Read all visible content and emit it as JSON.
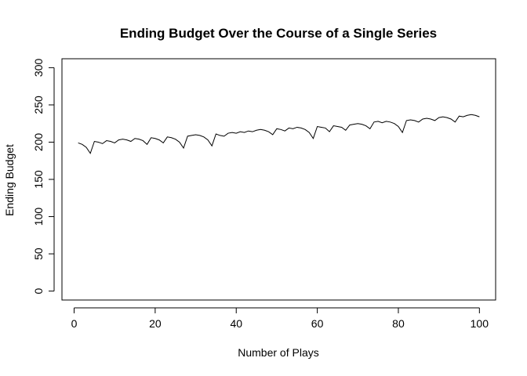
{
  "chart_data": {
    "type": "line",
    "title": "Ending Budget Over the Course of a Single Series",
    "xlabel": "Number of Plays",
    "ylabel": "Ending Budget",
    "xlim": [
      -3,
      104
    ],
    "ylim": [
      -12,
      312
    ],
    "x_ticks": [
      0,
      20,
      40,
      60,
      80,
      100
    ],
    "y_ticks": [
      0,
      50,
      100,
      150,
      200,
      250,
      300
    ],
    "grid": false,
    "legend": "none",
    "series": [
      {
        "color": "#000000",
        "x": [
          1,
          2,
          3,
          4,
          5,
          6,
          7,
          8,
          9,
          10,
          11,
          12,
          13,
          14,
          15,
          16,
          17,
          18,
          19,
          20,
          21,
          22,
          23,
          24,
          25,
          26,
          27,
          28,
          29,
          30,
          31,
          32,
          33,
          34,
          35,
          36,
          37,
          38,
          39,
          40,
          41,
          42,
          43,
          44,
          45,
          46,
          47,
          48,
          49,
          50,
          51,
          52,
          53,
          54,
          55,
          56,
          57,
          58,
          59,
          60,
          61,
          62,
          63,
          64,
          65,
          66,
          67,
          68,
          69,
          70,
          71,
          72,
          73,
          74,
          75,
          76,
          77,
          78,
          79,
          80,
          81,
          82,
          83,
          84,
          85,
          86,
          87,
          88,
          89,
          90,
          91,
          92,
          93,
          94,
          95,
          96,
          97,
          98,
          99,
          100
        ],
        "values": [
          199,
          197,
          193,
          185,
          201,
          200,
          198,
          202,
          201,
          199,
          203,
          204,
          203,
          201,
          205,
          204,
          202,
          197,
          206,
          205,
          203,
          199,
          207,
          206,
          204,
          200,
          192,
          208,
          209,
          210,
          209,
          207,
          203,
          195,
          211,
          209,
          208,
          212,
          213,
          212,
          214,
          213,
          215,
          214,
          216,
          217,
          216,
          214,
          210,
          218,
          217,
          215,
          219,
          218,
          220,
          219,
          217,
          213,
          205,
          221,
          220,
          219,
          214,
          222,
          221,
          220,
          216,
          223,
          224,
          225,
          224,
          222,
          218,
          227,
          228,
          226,
          228,
          227,
          225,
          221,
          213,
          229,
          230,
          229,
          227,
          231,
          232,
          231,
          229,
          233,
          234,
          233,
          231,
          227,
          235,
          234,
          236,
          237,
          236,
          234
        ]
      }
    ]
  }
}
